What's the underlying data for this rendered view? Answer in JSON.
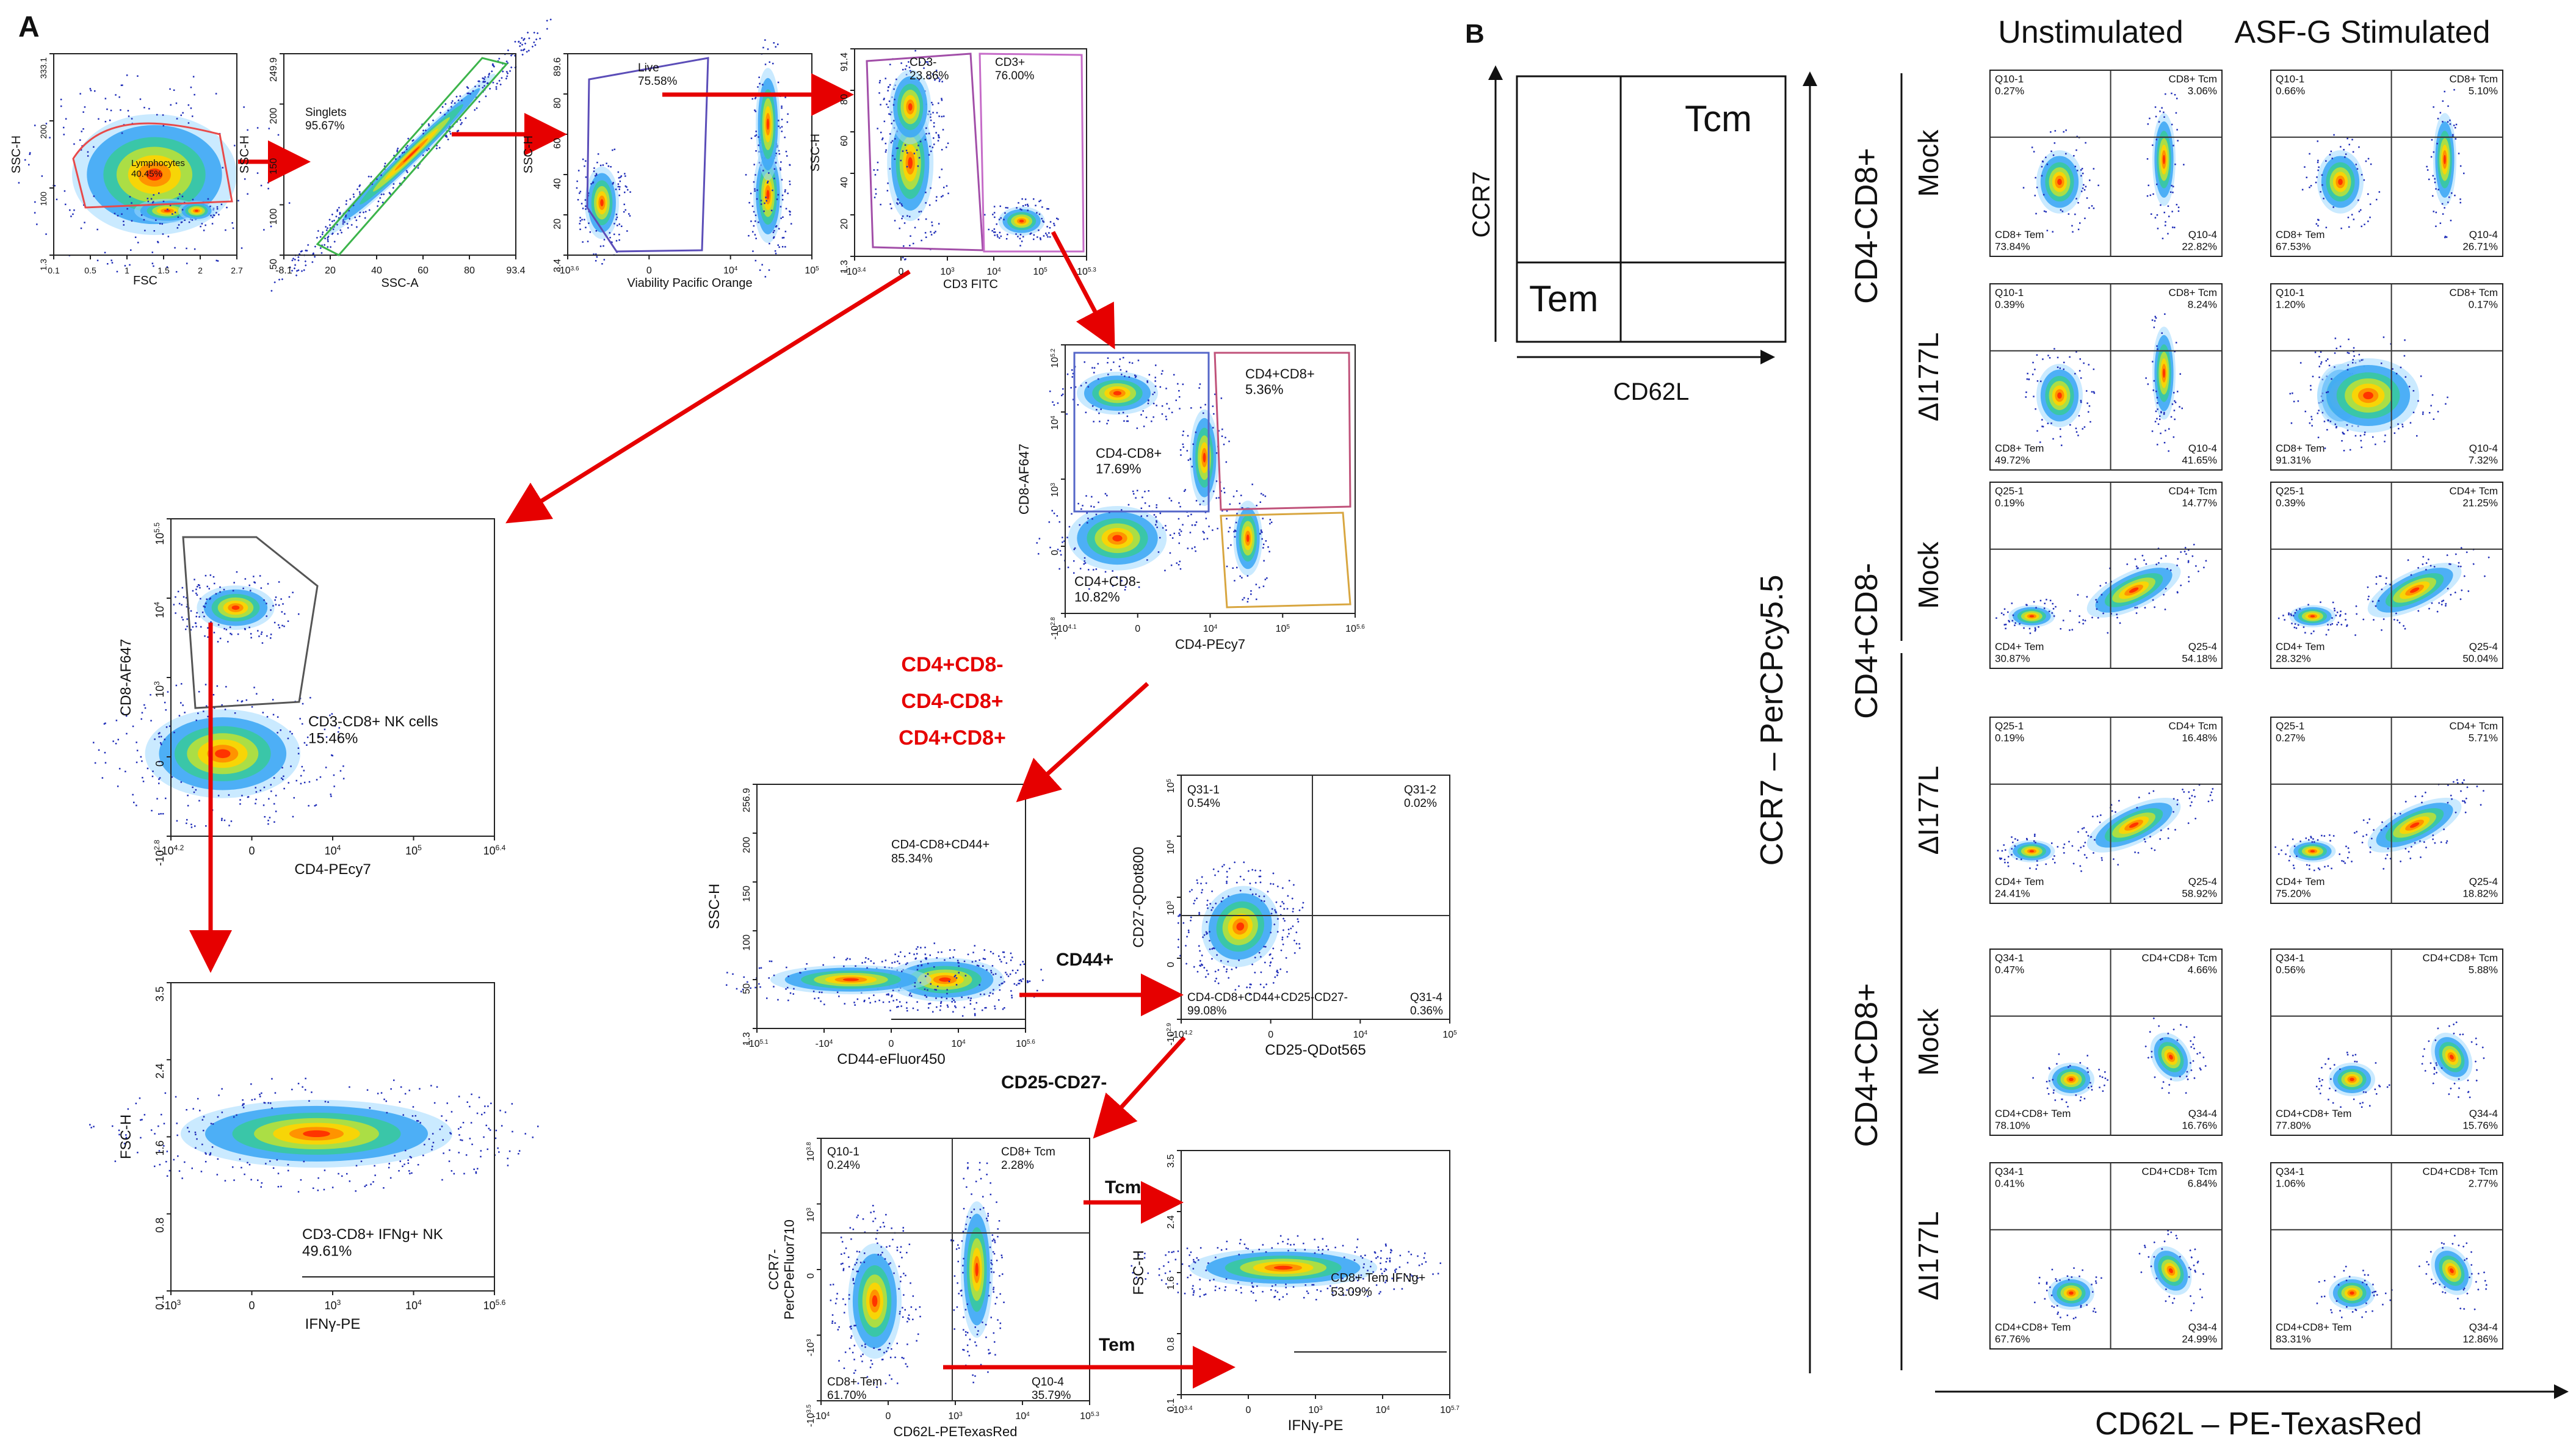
{
  "panelA": {
    "label": "A",
    "p1": {
      "gate": "Lymphocytes\n40.45%",
      "y_axis": "SSC-H",
      "x_axis": "FSC",
      "xticks": [
        "0.1",
        "0.5",
        "1",
        "1.5",
        "2",
        "2.7"
      ],
      "yticks": [
        "333.1",
        "200",
        "100",
        "1.3"
      ]
    },
    "p2": {
      "gate_name": "Singlets",
      "gate_pct": "95.67%",
      "y_axis": "SSC-H",
      "x_axis": "SSC-A",
      "xticks": [
        "-8.1",
        "20",
        "40",
        "60",
        "80",
        "93.4"
      ],
      "yticks": [
        "249.9",
        "200",
        "150",
        "100",
        "50"
      ]
    },
    "p3": {
      "gate_name": "Live",
      "gate_pct": "75.58%",
      "y_axis": "SSC-H",
      "x_axis": "Viability Pacific Orange",
      "xticks": [
        "-10^3.6",
        "0",
        "10^4",
        "10^5"
      ],
      "yticks": [
        "89.6",
        "80",
        "60",
        "40",
        "20",
        "3.4"
      ]
    },
    "p4": {
      "g1_name": "CD3-",
      "g1_pct": "23.86%",
      "g2_name": "CD3+",
      "g2_pct": "76.00%",
      "y_axis": "SSC-H",
      "x_axis": "CD3 FITC",
      "xticks": [
        "-10^3.4",
        "0",
        "10^3",
        "10^4",
        "10^5",
        "10^5.3"
      ],
      "yticks": [
        "91.4",
        "80",
        "60",
        "40",
        "20",
        "1.3"
      ]
    },
    "p5": {
      "g1_name": "CD4-CD8+",
      "g1_pct": "17.69%",
      "g2_name": "CD4+CD8+",
      "g2_pct": "5.36%",
      "g3_name": "CD4+CD8-",
      "g3_pct": "10.82%",
      "y_axis": "CD8-AF647",
      "x_axis": "CD4-PEcy7",
      "xticks": [
        "-10^4.1",
        "0",
        "10^4",
        "10^5",
        "10^5.6"
      ],
      "yticks": [
        "10^5.2",
        "10^4",
        "10^3",
        "0",
        "-10^2.8"
      ]
    },
    "p6": {
      "gate_name": "CD3-CD8+ NK cells",
      "gate_pct": "15.46%",
      "y_axis": "CD8-AF647",
      "x_axis": "CD4-PEcy7",
      "xticks": [
        "-10^4.2",
        "0",
        "10^4",
        "10^5",
        "10^6.4"
      ],
      "yticks": [
        "10^5.5",
        "10^4",
        "10^3",
        "0",
        "-10^2.8"
      ]
    },
    "p7": {
      "gate_name": "CD3-CD8+ IFNg+ NK",
      "gate_pct": "49.61%",
      "y_axis": "FSC-H",
      "x_axis": "IFNγ-PE",
      "xticks": [
        "-10^3",
        "0",
        "10^3",
        "10^4",
        "10^5.6"
      ],
      "yticks": [
        "3.5",
        "2.4",
        "1.6",
        "0.8",
        "0.1"
      ]
    },
    "p8": {
      "gate_name": "CD4-CD8+CD44+",
      "gate_pct": "85.34%",
      "y_axis": "SSC-H",
      "x_axis": "CD44-eFluor450",
      "xticks": [
        "-10^5.1",
        "-10^4",
        "0",
        "10^4",
        "10^5.6"
      ],
      "yticks": [
        "256.9",
        "200",
        "150",
        "100",
        "50",
        "1.3"
      ]
    },
    "p9": {
      "q1": "Q31-1\n0.54%",
      "q2": "Q31-2\n0.02%",
      "q3": "CD4-CD8+CD44+CD25-CD27-\n99.08%",
      "q4": "Q31-4\n0.36%",
      "y_axis": "CD27-QDot800",
      "x_axis": "CD25-QDot565",
      "xticks": [
        "-10^4.2",
        "0",
        "10^4",
        "10^5"
      ],
      "yticks": [
        "10^5",
        "10^4",
        "10^3",
        "0",
        "-10^2.9"
      ]
    },
    "p10": {
      "q1": "Q10-1\n0.24%",
      "q2": "CD8+ Tcm\n2.28%",
      "q3": "CD8+ Tem\n61.70%",
      "q4": "Q10-4\n35.79%",
      "y_axis": "CCR7-\nPerCPeFluor710",
      "x_axis": "CD62L-PETexasRed",
      "xticks": [
        "-10^4",
        "0",
        "10^3",
        "10^4",
        "10^5.3"
      ],
      "yticks": [
        "10^3.8",
        "10^3",
        "0",
        "-10^3",
        "-10^3.5"
      ]
    },
    "p11": {
      "gate_name": "CD8+ Tem IFNg+",
      "gate_pct": "53.09%",
      "y_axis": "FSC-H",
      "x_axis": "IFNγ-PE",
      "xticks": [
        "-10^3.4",
        "0",
        "10^3",
        "10^4",
        "10^5.7"
      ],
      "yticks": [
        "3.5",
        "2.4",
        "1.6",
        "0.8",
        "0.1"
      ]
    },
    "subset_labels": [
      "CD4+CD8-",
      "CD4-CD8+",
      "CD4+CD8+"
    ],
    "arrow_labels": {
      "cd44": "CD44+",
      "cd25": "CD25-CD27-",
      "tcm": "Tcm",
      "tem": "Tem"
    }
  },
  "panelB": {
    "label": "B",
    "legend": {
      "tcm": "Tcm",
      "tem": "Tem",
      "y_axis": "CCR7",
      "x_axis": "CD62L"
    },
    "col_headers": [
      "Unstimulated",
      "ASF-G Stimulated"
    ],
    "big_y_axis": "CCR7 – PerCPcy5.5",
    "big_x_axis": "CD62L – PE-TexasRed",
    "groups": [
      "CD4-CD8+",
      "CD4+CD8-",
      "CD4+CD8+"
    ],
    "rows": [
      {
        "label": "Mock",
        "plots": [
          {
            "tl": "Q10-1\n0.27%",
            "tr": "CD8+ Tcm\n3.06%",
            "bl": "CD8+ Tem\n73.84%",
            "br": "Q10-4\n22.82%"
          },
          {
            "tl": "Q10-1\n0.66%",
            "tr": "CD8+ Tcm\n5.10%",
            "bl": "CD8+ Tem\n67.53%",
            "br": "Q10-4\n26.71%"
          }
        ]
      },
      {
        "label": "ΔI177L",
        "plots": [
          {
            "tl": "Q10-1\n0.39%",
            "tr": "CD8+ Tcm\n8.24%",
            "bl": "CD8+ Tem\n49.72%",
            "br": "Q10-4\n41.65%"
          },
          {
            "tl": "Q10-1\n1.20%",
            "tr": "CD8+ Tcm\n0.17%",
            "bl": "CD8+ Tem\n91.31%",
            "br": "Q10-4\n7.32%"
          }
        ]
      },
      {
        "label": "Mock",
        "plots": [
          {
            "tl": "Q25-1\n0.19%",
            "tr": "CD4+ Tcm\n14.77%",
            "bl": "CD4+ Tem\n30.87%",
            "br": "Q25-4\n54.18%"
          },
          {
            "tl": "Q25-1\n0.39%",
            "tr": "CD4+ Tcm\n21.25%",
            "bl": "CD4+ Tem\n28.32%",
            "br": "Q25-4\n50.04%"
          }
        ]
      },
      {
        "label": "ΔI177L",
        "plots": [
          {
            "tl": "Q25-1\n0.19%",
            "tr": "CD4+ Tcm\n16.48%",
            "bl": "CD4+ Tem\n24.41%",
            "br": "Q25-4\n58.92%"
          },
          {
            "tl": "Q25-1\n0.27%",
            "tr": "CD4+ Tcm\n5.71%",
            "bl": "CD4+ Tem\n75.20%",
            "br": "Q25-4\n18.82%"
          }
        ]
      },
      {
        "label": "Mock",
        "plots": [
          {
            "tl": "Q34-1\n0.47%",
            "tr": "CD4+CD8+ Tcm\n4.66%",
            "bl": "CD4+CD8+ Tem\n78.10%",
            "br": "Q34-4\n16.76%"
          },
          {
            "tl": "Q34-1\n0.56%",
            "tr": "CD4+CD8+ Tcm\n5.88%",
            "bl": "CD4+CD8+ Tem\n77.80%",
            "br": "Q34-4\n15.76%"
          }
        ]
      },
      {
        "label": "ΔI177L",
        "plots": [
          {
            "tl": "Q34-1\n0.41%",
            "tr": "CD4+CD8+ Tcm\n6.84%",
            "bl": "CD4+CD8+ Tem\n67.76%",
            "br": "Q34-4\n24.99%"
          },
          {
            "tl": "Q34-1\n1.06%",
            "tr": "CD4+CD8+ Tcm\n2.77%",
            "bl": "CD4+CD8+ Tem\n83.31%",
            "br": "Q34-4\n12.86%"
          }
        ]
      }
    ]
  }
}
